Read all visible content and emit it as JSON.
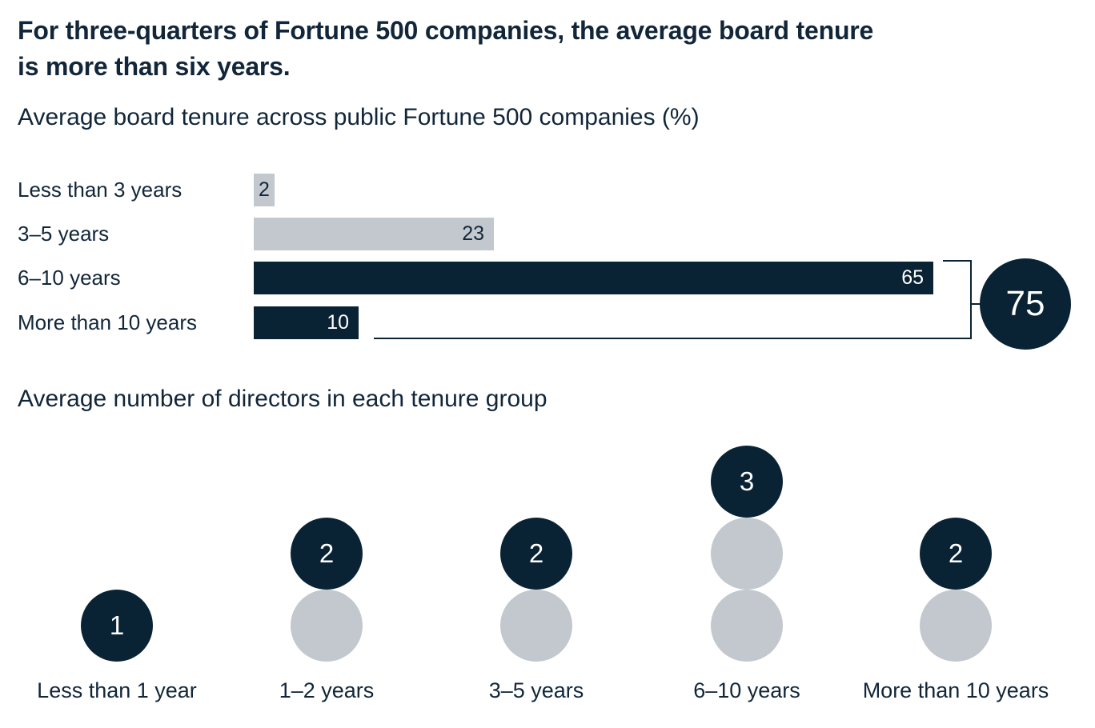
{
  "theme": {
    "navy": "#0a2334",
    "gray": "#c3c8ce",
    "text": "#112639",
    "white": "#ffffff"
  },
  "headline": {
    "line1": "For three-quarters of Fortune 500 companies, the average board tenure",
    "line2": "is more than six years."
  },
  "chart_data": [
    {
      "type": "bar",
      "orientation": "horizontal",
      "title": "Average board tenure across public Fortune 500 companies (%)",
      "unit": "percent",
      "categories": [
        "Less than 3 years",
        "3–5 years",
        "6–10 years",
        "More than 10 years"
      ],
      "values": [
        2,
        23,
        65,
        10
      ],
      "colors": [
        "#c3c8ce",
        "#c3c8ce",
        "#0a2334",
        "#0a2334"
      ],
      "xlim": [
        0,
        65
      ],
      "grid": false,
      "legend": false,
      "annotation": {
        "label": "75",
        "spans": [
          "6–10 years",
          "More than 10 years"
        ]
      }
    },
    {
      "type": "pictogram",
      "title": "Average number of directors in each tenure group",
      "categories": [
        "Less than 1 year",
        "1–2 years",
        "3–5 years",
        "6–10 years",
        "More than 10 years"
      ],
      "values": [
        1,
        2,
        2,
        3,
        2
      ]
    }
  ]
}
